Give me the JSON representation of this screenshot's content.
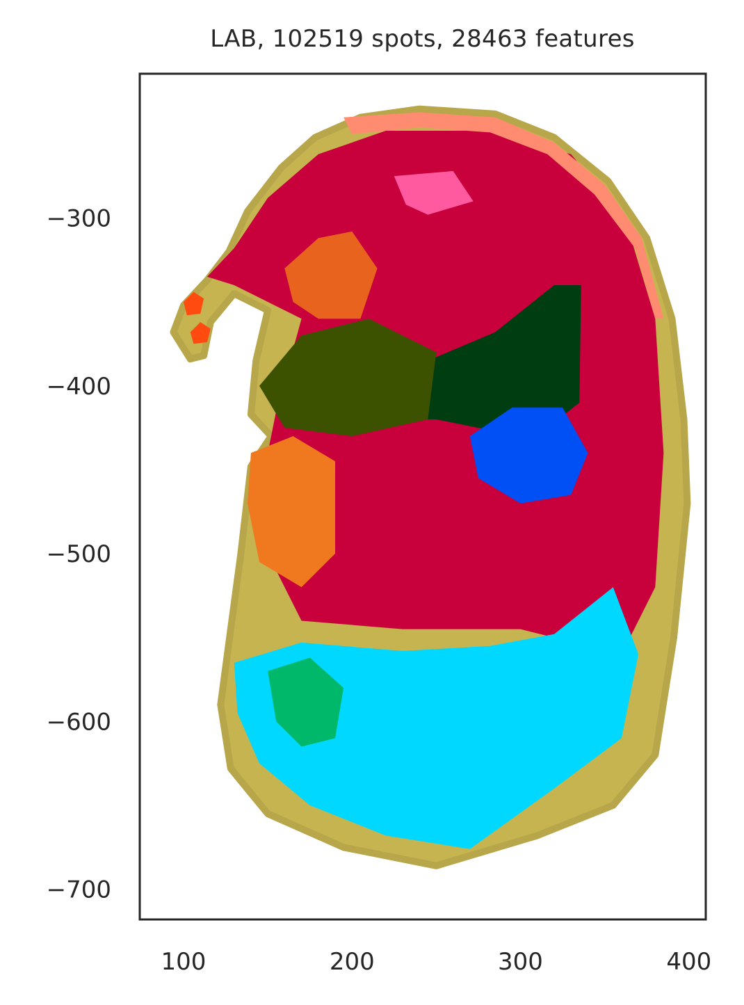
{
  "chart_data": {
    "type": "scatter",
    "title": "LAB, 102519 spots, 28463 features",
    "xlabel": "",
    "ylabel": "",
    "xlim": [
      74,
      410
    ],
    "ylim": [
      -718,
      -214
    ],
    "xticks": [
      100,
      200,
      300,
      400
    ],
    "yticks": [
      -300,
      -400,
      -500,
      -600,
      -700
    ],
    "grid": false,
    "n_spots": 102519,
    "n_features": 28463,
    "colors": {
      "outline": "#c6b451",
      "cortex_cyan": "#00d8ff",
      "brain_green": "#00b86a",
      "liver_dark": "#003d10",
      "heart_blue": "#0050f5",
      "body_red": "#c8003c",
      "salmon": "#ff8c70",
      "orange": "#f0781e",
      "pink": "#ff5aa0"
    },
    "regions": [
      {
        "name": "outline",
        "color": "#c6b451",
        "outline": [
          [
            100,
            -352
          ],
          [
            114,
            -337
          ],
          [
            127,
            -320
          ],
          [
            138,
            -296
          ],
          [
            158,
            -270
          ],
          [
            178,
            -252
          ],
          [
            205,
            -240
          ],
          [
            240,
            -235
          ],
          [
            285,
            -238
          ],
          [
            320,
            -252
          ],
          [
            352,
            -278
          ],
          [
            375,
            -312
          ],
          [
            390,
            -360
          ],
          [
            397,
            -420
          ],
          [
            399,
            -470
          ],
          [
            391,
            -550
          ],
          [
            380,
            -620
          ],
          [
            355,
            -650
          ],
          [
            310,
            -668
          ],
          [
            250,
            -686
          ],
          [
            195,
            -675
          ],
          [
            150,
            -655
          ],
          [
            128,
            -628
          ],
          [
            122,
            -590
          ],
          [
            128,
            -545
          ],
          [
            134,
            -500
          ],
          [
            140,
            -448
          ],
          [
            152,
            -430
          ],
          [
            140,
            -417
          ],
          [
            143,
            -385
          ],
          [
            150,
            -355
          ],
          [
            130,
            -345
          ],
          [
            116,
            -362
          ],
          [
            112,
            -382
          ],
          [
            104,
            -384
          ],
          [
            94,
            -368
          ]
        ]
      },
      {
        "name": "body-red",
        "color": "#c8003c",
        "outline": [
          [
            114,
            -335
          ],
          [
            130,
            -318
          ],
          [
            150,
            -288
          ],
          [
            180,
            -262
          ],
          [
            220,
            -248
          ],
          [
            280,
            -248
          ],
          [
            330,
            -262
          ],
          [
            362,
            -300
          ],
          [
            380,
            -360
          ],
          [
            385,
            -440
          ],
          [
            380,
            -520
          ],
          [
            360,
            -560
          ],
          [
            300,
            -545
          ],
          [
            230,
            -545
          ],
          [
            170,
            -540
          ],
          [
            150,
            -500
          ],
          [
            150,
            -440
          ],
          [
            155,
            -415
          ],
          [
            170,
            -360
          ],
          [
            150,
            -350
          ],
          [
            130,
            -340
          ]
        ]
      },
      {
        "name": "cortex-cyan",
        "color": "#00d8ff",
        "outline": [
          [
            130,
            -565
          ],
          [
            170,
            -553
          ],
          [
            230,
            -558
          ],
          [
            282,
            -555
          ],
          [
            320,
            -548
          ],
          [
            355,
            -520
          ],
          [
            370,
            -560
          ],
          [
            360,
            -610
          ],
          [
            320,
            -640
          ],
          [
            270,
            -676
          ],
          [
            220,
            -668
          ],
          [
            175,
            -650
          ],
          [
            145,
            -625
          ],
          [
            132,
            -595
          ]
        ]
      },
      {
        "name": "brain-green",
        "color": "#00b86a",
        "outline": [
          [
            150,
            -570
          ],
          [
            175,
            -562
          ],
          [
            195,
            -580
          ],
          [
            190,
            -610
          ],
          [
            170,
            -615
          ],
          [
            155,
            -600
          ]
        ]
      },
      {
        "name": "liver-dark",
        "color": "#003d10",
        "outline": [
          [
            220,
            -420
          ],
          [
            245,
            -385
          ],
          [
            285,
            -368
          ],
          [
            320,
            -340
          ],
          [
            336,
            -340
          ],
          [
            335,
            -410
          ],
          [
            310,
            -430
          ],
          [
            275,
            -425
          ],
          [
            250,
            -420
          ]
        ]
      },
      {
        "name": "heart-blue",
        "color": "#0050f5",
        "outline": [
          [
            270,
            -430
          ],
          [
            295,
            -413
          ],
          [
            325,
            -413
          ],
          [
            340,
            -440
          ],
          [
            330,
            -465
          ],
          [
            300,
            -470
          ],
          [
            275,
            -455
          ]
        ]
      },
      {
        "name": "upper-organ-olive",
        "color": "#3c5200",
        "outline": [
          [
            145,
            -400
          ],
          [
            170,
            -370
          ],
          [
            210,
            -360
          ],
          [
            250,
            -380
          ],
          [
            245,
            -420
          ],
          [
            200,
            -430
          ],
          [
            160,
            -425
          ]
        ]
      },
      {
        "name": "tail-orange",
        "color": "#e8641e",
        "outline": [
          [
            160,
            -330
          ],
          [
            180,
            -312
          ],
          [
            200,
            -308
          ],
          [
            215,
            -330
          ],
          [
            205,
            -360
          ],
          [
            180,
            -360
          ],
          [
            165,
            -350
          ]
        ]
      },
      {
        "name": "lower-orange",
        "color": "#f0781e",
        "outline": [
          [
            140,
            -440
          ],
          [
            165,
            -430
          ],
          [
            190,
            -445
          ],
          [
            190,
            -500
          ],
          [
            170,
            -520
          ],
          [
            145,
            -505
          ],
          [
            138,
            -470
          ]
        ]
      },
      {
        "name": "pink-stripe",
        "color": "#ff5aa0",
        "outline": [
          [
            225,
            -275
          ],
          [
            260,
            -272
          ],
          [
            272,
            -290
          ],
          [
            245,
            -298
          ],
          [
            232,
            -292
          ]
        ]
      },
      {
        "name": "salmon-rim",
        "color": "#ff8c70",
        "outline": [
          [
            195,
            -240
          ],
          [
            240,
            -237
          ],
          [
            285,
            -240
          ],
          [
            320,
            -255
          ],
          [
            350,
            -280
          ],
          [
            372,
            -312
          ],
          [
            385,
            -360
          ],
          [
            380,
            -360
          ],
          [
            368,
            -318
          ],
          [
            344,
            -286
          ],
          [
            316,
            -262
          ],
          [
            282,
            -249
          ],
          [
            240,
            -246
          ],
          [
            200,
            -250
          ]
        ]
      },
      {
        "name": "tail-tip-orange-1",
        "color": "#ff4a10",
        "outline": [
          [
            100,
            -350
          ],
          [
            106,
            -344
          ],
          [
            112,
            -348
          ],
          [
            110,
            -357
          ],
          [
            102,
            -358
          ]
        ]
      },
      {
        "name": "tail-tip-orange-2",
        "color": "#ff4a10",
        "outline": [
          [
            104,
            -368
          ],
          [
            110,
            -362
          ],
          [
            116,
            -366
          ],
          [
            114,
            -374
          ],
          [
            106,
            -375
          ]
        ]
      }
    ]
  }
}
